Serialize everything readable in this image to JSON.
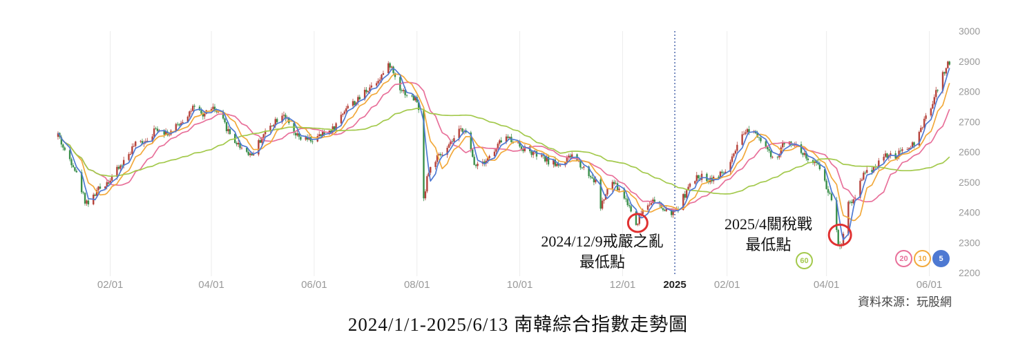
{
  "page": {
    "title": "2024/1/1-2025/6/13 南韓綜合指數走勢圖",
    "source": "資料來源：玩股網"
  },
  "chart_data": {
    "type": "candlestick",
    "instrument": "南韓綜合指數 (KOSPI)",
    "date_range": "2024/1/1 - 2025/6/13",
    "ylim": [
      2200,
      3000
    ],
    "yticks": [
      2200,
      2300,
      2400,
      2500,
      2600,
      2700,
      2800,
      2900,
      3000
    ],
    "xticks": [
      {
        "label": "02/01",
        "day": 31,
        "bold": false
      },
      {
        "label": "04/01",
        "day": 91,
        "bold": false
      },
      {
        "label": "06/01",
        "day": 152,
        "bold": false
      },
      {
        "label": "08/01",
        "day": 213,
        "bold": false
      },
      {
        "label": "10/01",
        "day": 274,
        "bold": false
      },
      {
        "label": "12/01",
        "day": 335,
        "bold": false
      },
      {
        "label": "2025",
        "day": 366,
        "bold": true
      },
      {
        "label": "02/01",
        "day": 397,
        "bold": false
      },
      {
        "label": "04/01",
        "day": 456,
        "bold": false
      },
      {
        "label": "06/01",
        "day": 517,
        "bold": false
      }
    ],
    "anchors": [
      [
        0,
        2660
      ],
      [
        4,
        2600
      ],
      [
        9,
        2560
      ],
      [
        16,
        2440
      ],
      [
        19,
        2430
      ],
      [
        23,
        2470
      ],
      [
        31,
        2510
      ],
      [
        38,
        2560
      ],
      [
        45,
        2620
      ],
      [
        52,
        2640
      ],
      [
        59,
        2680
      ],
      [
        66,
        2660
      ],
      [
        73,
        2700
      ],
      [
        80,
        2745
      ],
      [
        86,
        2720
      ],
      [
        91,
        2750
      ],
      [
        97,
        2710
      ],
      [
        104,
        2640
      ],
      [
        110,
        2610
      ],
      [
        115,
        2590
      ],
      [
        121,
        2650
      ],
      [
        128,
        2700
      ],
      [
        134,
        2730
      ],
      [
        139,
        2660
      ],
      [
        145,
        2640
      ],
      [
        152,
        2640
      ],
      [
        158,
        2660
      ],
      [
        164,
        2680
      ],
      [
        171,
        2750
      ],
      [
        178,
        2770
      ],
      [
        182,
        2800
      ],
      [
        188,
        2830
      ],
      [
        193,
        2860
      ],
      [
        197,
        2890
      ],
      [
        202,
        2820
      ],
      [
        207,
        2790
      ],
      [
        213,
        2770
      ],
      [
        215,
        2700
      ],
      [
        217,
        2440
      ],
      [
        219,
        2520
      ],
      [
        223,
        2570
      ],
      [
        230,
        2600
      ],
      [
        237,
        2660
      ],
      [
        241,
        2680
      ],
      [
        247,
        2560
      ],
      [
        252,
        2570
      ],
      [
        258,
        2590
      ],
      [
        264,
        2650
      ],
      [
        270,
        2640
      ],
      [
        274,
        2620
      ],
      [
        280,
        2600
      ],
      [
        287,
        2580
      ],
      [
        295,
        2560
      ],
      [
        300,
        2560
      ],
      [
        305,
        2590
      ],
      [
        310,
        2560
      ],
      [
        316,
        2520
      ],
      [
        319,
        2500
      ],
      [
        322,
        2420
      ],
      [
        326,
        2470
      ],
      [
        329,
        2500
      ],
      [
        335,
        2460
      ],
      [
        339,
        2420
      ],
      [
        343,
        2360
      ],
      [
        347,
        2410
      ],
      [
        352,
        2440
      ],
      [
        357,
        2420
      ],
      [
        361,
        2400
      ],
      [
        366,
        2400
      ],
      [
        370,
        2440
      ],
      [
        374,
        2480
      ],
      [
        380,
        2520
      ],
      [
        386,
        2510
      ],
      [
        392,
        2520
      ],
      [
        397,
        2540
      ],
      [
        402,
        2600
      ],
      [
        407,
        2660
      ],
      [
        411,
        2680
      ],
      [
        415,
        2660
      ],
      [
        419,
        2630
      ],
      [
        425,
        2560
      ],
      [
        430,
        2620
      ],
      [
        434,
        2640
      ],
      [
        438,
        2620
      ],
      [
        443,
        2590
      ],
      [
        448,
        2560
      ],
      [
        453,
        2550
      ],
      [
        456,
        2480
      ],
      [
        460,
        2440
      ],
      [
        463,
        2300
      ],
      [
        465,
        2290
      ],
      [
        468,
        2430
      ],
      [
        472,
        2440
      ],
      [
        477,
        2520
      ],
      [
        482,
        2540
      ],
      [
        486,
        2560
      ],
      [
        491,
        2590
      ],
      [
        496,
        2580
      ],
      [
        501,
        2600
      ],
      [
        506,
        2620
      ],
      [
        510,
        2640
      ],
      [
        514,
        2700
      ],
      [
        518,
        2750
      ],
      [
        522,
        2810
      ],
      [
        526,
        2870
      ],
      [
        529,
        2900
      ]
    ],
    "series": [
      {
        "name": "5",
        "color": "#4e79d2"
      },
      {
        "name": "10",
        "color": "#f2a93b"
      },
      {
        "name": "20",
        "color": "#e8709a"
      },
      {
        "name": "60",
        "color": "#a3c94c"
      }
    ],
    "colors": {
      "up": "#b5413a",
      "down": "#3a8f4a",
      "grid": "#ececec",
      "axis_text": "#999999",
      "axis_text_bold": "#222222",
      "divider_line": "#2f4f9e",
      "annotation_circle": "#e03131"
    },
    "divider_day": 366,
    "annotations": [
      {
        "lines": [
          "2024/12/9戒嚴之亂",
          "最低點"
        ],
        "day": 344,
        "circle_value": 2365,
        "rx": 14,
        "ry": 13
      },
      {
        "lines": [
          "2025/4關稅戰",
          "最低點"
        ],
        "day": 464,
        "circle_value": 2325,
        "rx": 16,
        "ry": 15
      }
    ],
    "legend_badges": [
      {
        "label": "60",
        "color": "#a3c94c",
        "filled": false
      },
      {
        "label": "20",
        "color": "#e8709a",
        "filled": false
      },
      {
        "label": "10",
        "color": "#f2a93b",
        "filled": false
      },
      {
        "label": "5",
        "color": "#4e79d2",
        "filled": true
      }
    ]
  }
}
